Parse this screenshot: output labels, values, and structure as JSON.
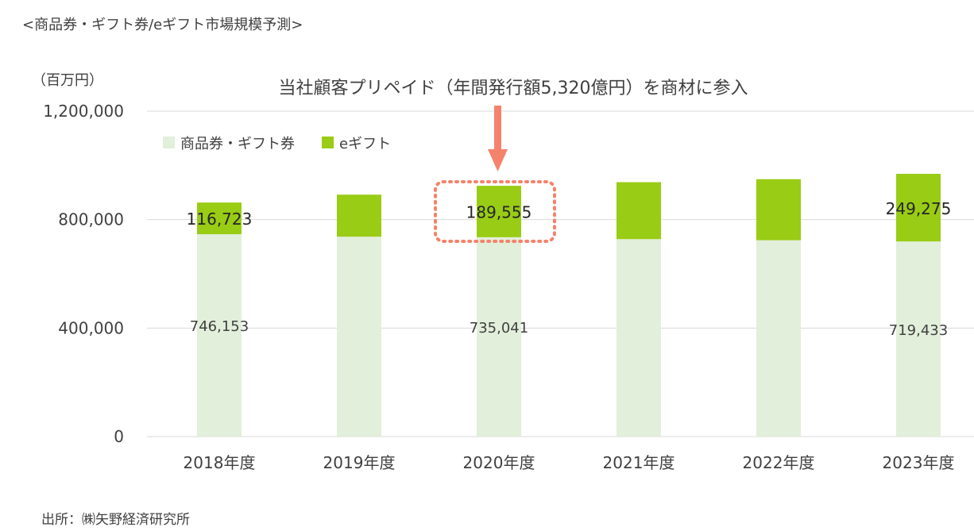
{
  "header": {
    "title": "<商品券・ギフト券/eギフト市場規模予測>"
  },
  "footer": {
    "source": "出所：㈱矢野経済研究所"
  },
  "annotation": {
    "callout": "当社顧客プリペイド（年間発行額5,320億円）を商材に参入"
  },
  "colors": {
    "gift_voucher": "#e2efda",
    "egift": "#99cc14",
    "arrow": "#f4836b",
    "highlight": "#f4836b",
    "grid": "#d9d9d9"
  },
  "chart_data": {
    "type": "bar",
    "stacked": true,
    "yunit": "（百万円）",
    "ylim": [
      0,
      1200000
    ],
    "yticks": [
      0,
      400000,
      800000,
      1200000
    ],
    "ytick_labels": [
      "0",
      "400,000",
      "800,000",
      "1,200,000"
    ],
    "grid": true,
    "legend": "top-left",
    "categories": [
      "2018年度",
      "2019年度",
      "2020年度",
      "2021年度",
      "2022年度",
      "2023年度"
    ],
    "series": [
      {
        "name": "商品券・ギフト券",
        "values": [
          746153,
          737000,
          735041,
          728000,
          724000,
          719433
        ]
      },
      {
        "name": "eギフト",
        "values": [
          116723,
          155000,
          189555,
          210000,
          225000,
          249275
        ]
      }
    ],
    "data_labels": [
      {
        "category": "2018年度",
        "series": "商品券・ギフト券",
        "text": "746,153"
      },
      {
        "category": "2018年度",
        "series": "eギフト",
        "text": "116,723"
      },
      {
        "category": "2020年度",
        "series": "商品券・ギフト券",
        "text": "735,041"
      },
      {
        "category": "2020年度",
        "series": "eギフト",
        "text": "189,555"
      },
      {
        "category": "2023年度",
        "series": "商品券・ギフト券",
        "text": "719,433"
      },
      {
        "category": "2023年度",
        "series": "eギフト",
        "text": "249,275"
      }
    ],
    "highlighted_category": "2020年度"
  }
}
